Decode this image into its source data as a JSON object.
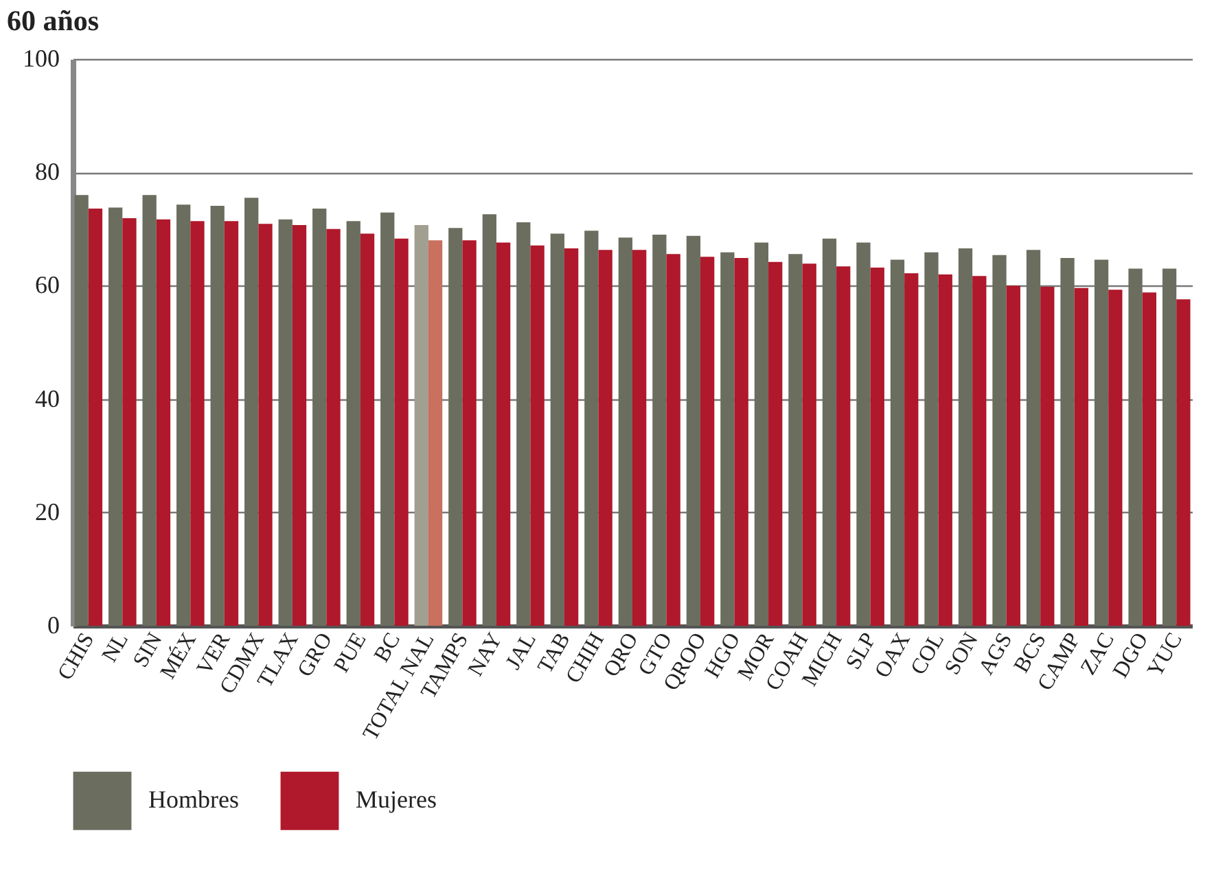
{
  "chart_data": {
    "type": "bar",
    "title": "60 años",
    "categories": [
      "CHIS",
      "NL",
      "SIN",
      "MÉX",
      "VER",
      "CDMX",
      "TLAX",
      "GRO",
      "PUE",
      "BC",
      "TOTAL NAL",
      "TAMPS",
      "NAY",
      "JAL",
      "TAB",
      "CHIH",
      "QRO",
      "GTO",
      "QROO",
      "HGO",
      "MOR",
      "COAH",
      "MICH",
      "SLP",
      "OAX",
      "COL",
      "SON",
      "AGS",
      "BCS",
      "CAMP",
      "ZAC",
      "DGO",
      "YUC"
    ],
    "series": [
      {
        "name": "Hombres",
        "color": "#6b6e5f",
        "colors": [
          "#6b6e5f",
          "#6b6e5f",
          "#6b6e5f",
          "#6b6e5f",
          "#6b6e5f",
          "#6b6e5f",
          "#6b6e5f",
          "#6b6e5f",
          "#6b6e5f",
          "#6b6e5f",
          "#a09f90",
          "#6b6e5f",
          "#6b6e5f",
          "#6b6e5f",
          "#6b6e5f",
          "#6b6e5f",
          "#6b6e5f",
          "#6b6e5f",
          "#6b6e5f",
          "#6b6e5f",
          "#6b6e5f",
          "#6b6e5f",
          "#6b6e5f",
          "#6b6e5f",
          "#6b6e5f",
          "#6b6e5f",
          "#6b6e5f",
          "#6b6e5f",
          "#6b6e5f",
          "#6b6e5f",
          "#6b6e5f",
          "#6b6e5f",
          "#6b6e5f"
        ],
        "values": [
          76.0,
          73.8,
          76.0,
          74.3,
          74.1,
          75.5,
          71.7,
          73.6,
          71.4,
          72.9,
          70.7,
          70.2,
          72.6,
          71.2,
          69.2,
          69.7,
          68.5,
          69.0,
          68.8,
          65.9,
          67.6,
          65.6,
          68.3,
          67.6,
          64.6,
          65.9,
          66.6,
          65.4,
          66.3,
          64.9,
          64.6,
          63.0,
          63.0
        ]
      },
      {
        "name": "Mujeres",
        "color": "#b0182b",
        "colors": [
          "#b0182b",
          "#b0182b",
          "#b0182b",
          "#b0182b",
          "#b0182b",
          "#b0182b",
          "#b0182b",
          "#b0182b",
          "#b0182b",
          "#b0182b",
          "#c9705f",
          "#b0182b",
          "#b0182b",
          "#b0182b",
          "#b0182b",
          "#b0182b",
          "#b0182b",
          "#b0182b",
          "#b0182b",
          "#b0182b",
          "#b0182b",
          "#b0182b",
          "#b0182b",
          "#b0182b",
          "#b0182b",
          "#b0182b",
          "#b0182b",
          "#b0182b",
          "#b0182b",
          "#b0182b",
          "#b0182b",
          "#b0182b",
          "#b0182b"
        ],
        "values": [
          73.6,
          71.9,
          71.7,
          71.4,
          71.4,
          70.9,
          70.7,
          70.0,
          69.2,
          68.3,
          68.0,
          68.0,
          67.6,
          67.1,
          66.6,
          66.3,
          66.3,
          65.6,
          65.1,
          64.9,
          64.2,
          63.9,
          63.4,
          63.2,
          62.2,
          62.0,
          61.7,
          60.0,
          59.8,
          59.6,
          59.3,
          58.8,
          57.6
        ]
      }
    ],
    "ylim": [
      0,
      100
    ],
    "yticks": [
      0,
      20,
      40,
      60,
      80,
      100
    ],
    "grid": "y",
    "legend": "bottom"
  }
}
